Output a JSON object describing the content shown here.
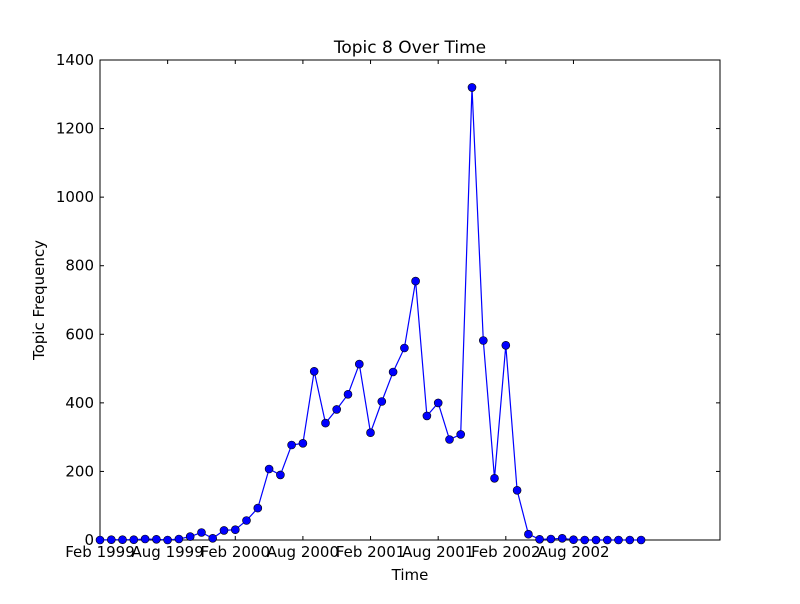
{
  "chart_data": {
    "type": "line",
    "title": "Topic 8 Over Time",
    "xlabel": "Time",
    "ylabel": "Topic Frequency",
    "x_tick_labels": [
      "Feb 1999",
      "Aug 1999",
      "Feb 2000",
      "Aug 2000",
      "Feb 2001",
      "Aug 2001",
      "Feb 2002",
      "Aug 2002"
    ],
    "y_tick_labels": [
      "0",
      "200",
      "400",
      "600",
      "800",
      "1000",
      "1200",
      "1400"
    ],
    "y_ticks": [
      0,
      200,
      400,
      600,
      800,
      1000,
      1200,
      1400
    ],
    "ylim": [
      0,
      1400
    ],
    "xlim": [
      "1999-02",
      "2003-09"
    ],
    "grid": false,
    "marker": "circle",
    "color": "#0000ff",
    "series": [
      {
        "x": [
          "1999-02",
          "1999-03",
          "1999-04",
          "1999-05",
          "1999-06",
          "1999-07",
          "1999-08",
          "1999-09",
          "1999-10",
          "1999-11",
          "1999-12",
          "2000-01",
          "2000-02",
          "2000-03",
          "2000-04",
          "2000-05",
          "2000-06",
          "2000-07",
          "2000-08",
          "2000-09",
          "2000-10",
          "2000-11",
          "2000-12",
          "2001-01",
          "2001-02",
          "2001-03",
          "2001-04",
          "2001-05",
          "2001-06",
          "2001-07",
          "2001-08",
          "2001-09",
          "2001-10",
          "2001-11",
          "2001-12",
          "2002-01",
          "2002-02",
          "2002-03",
          "2002-04",
          "2002-05",
          "2002-06",
          "2002-07",
          "2002-08",
          "2002-09",
          "2002-10",
          "2002-11",
          "2002-12",
          "2003-01",
          "2003-02"
        ],
        "values": [
          0,
          1,
          1,
          1,
          3,
          2,
          0,
          3,
          10,
          22,
          5,
          28,
          30,
          57,
          93,
          207,
          190,
          277,
          282,
          492,
          341,
          381,
          425,
          513,
          313,
          404,
          490,
          560,
          755,
          362,
          400,
          293,
          308,
          1320,
          582,
          180,
          568,
          145,
          17,
          2,
          3,
          5,
          1,
          0,
          0,
          0,
          0,
          0,
          0
        ]
      }
    ]
  }
}
